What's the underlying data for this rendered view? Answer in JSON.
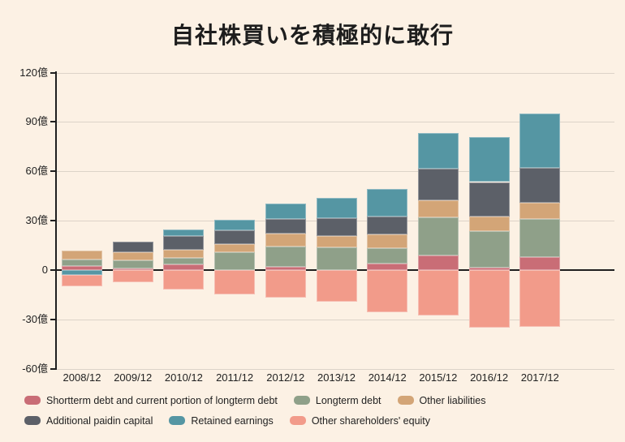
{
  "title": "自社株買いを積極的に敢行",
  "colors": {
    "background": "#fcf1e4",
    "grid": "#dcd3c8",
    "axis": "#1f1f1f",
    "text": "#222222"
  },
  "chart_data": {
    "type": "bar",
    "stacked": true,
    "title": "自社株買いを積極的に敢行",
    "unit": "億",
    "categories": [
      "2008/12",
      "2009/12",
      "2010/12",
      "2011/12",
      "2012/12",
      "2013/12",
      "2014/12",
      "2015/12",
      "2016/12",
      "2017/12"
    ],
    "series": [
      {
        "name": "Shortterm debt and current portion of longterm debt",
        "color": "#c96d76",
        "values": [
          2.5,
          1,
          3.5,
          0,
          2,
          0,
          4,
          9,
          1.5,
          8
        ]
      },
      {
        "name": "Longterm debt",
        "color": "#8fa089",
        "values": [
          4,
          5,
          4,
          11,
          12.5,
          14,
          9.5,
          23,
          22,
          23
        ]
      },
      {
        "name": "Other liabilities",
        "color": "#d3a577",
        "values": [
          5.5,
          5,
          5,
          5,
          7.5,
          6.5,
          8,
          10.5,
          9,
          10
        ]
      },
      {
        "name": "Additional paidin capital",
        "color": "#5c6068",
        "values": [
          0,
          6.5,
          8,
          8,
          9,
          11,
          11,
          19,
          21,
          21
        ]
      },
      {
        "name": "Retained earnings",
        "color": "#5596a3",
        "values": [
          -3,
          0,
          4,
          6.5,
          9.5,
          12.5,
          17,
          22,
          27.5,
          33
        ]
      },
      {
        "name": "Other shareholders' equity",
        "color": "#f29b8a",
        "values": [
          -7,
          -7.5,
          -12,
          -15,
          -17,
          -19,
          -25.5,
          -27.5,
          -35,
          -34.5
        ]
      }
    ],
    "y_ticks": [
      {
        "value": 120,
        "label": "120億"
      },
      {
        "value": 90,
        "label": "90億"
      },
      {
        "value": 60,
        "label": "60億"
      },
      {
        "value": 30,
        "label": "30億"
      },
      {
        "value": 0,
        "label": "0"
      },
      {
        "value": -30,
        "label": "-30億"
      },
      {
        "value": -60,
        "label": "-60億"
      }
    ],
    "ylim": [
      -60,
      120
    ],
    "grid": true,
    "legend_position": "bottom"
  }
}
